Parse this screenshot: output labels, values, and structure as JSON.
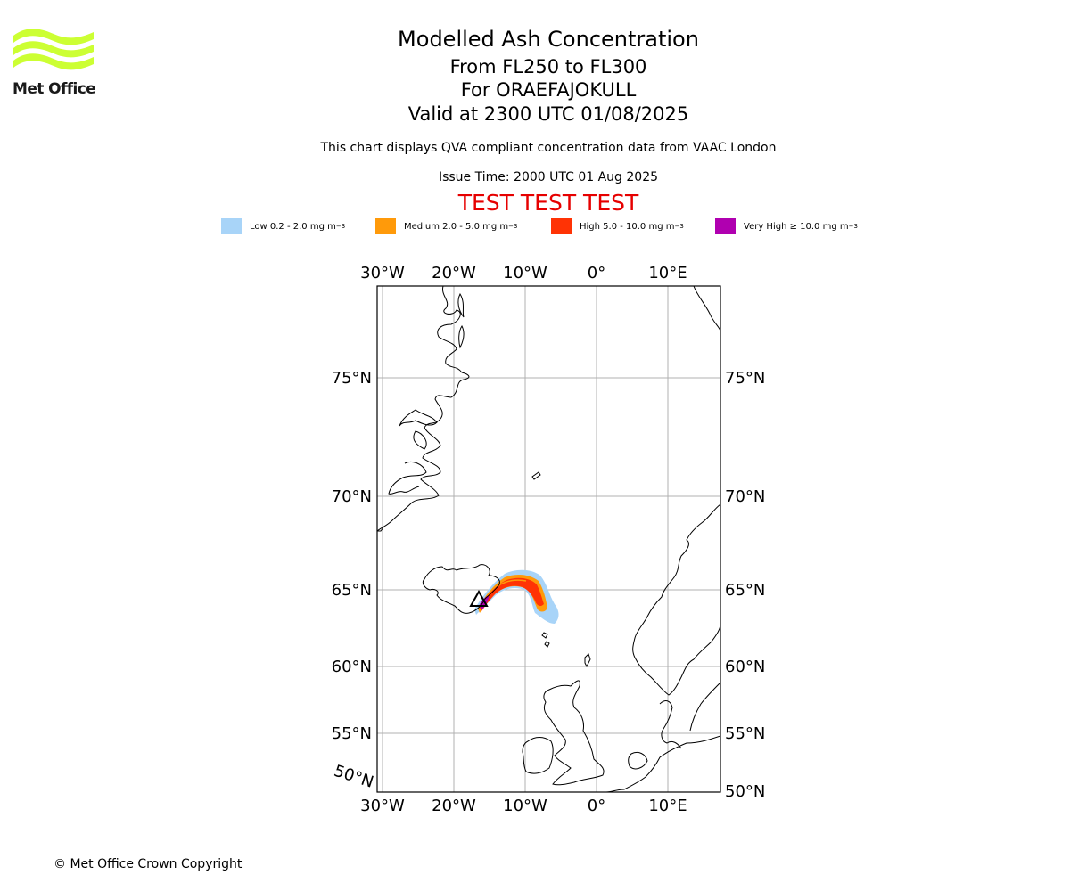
{
  "logo": {
    "text": "Met Office",
    "color": "#ccff33"
  },
  "title": {
    "main": "Modelled Ash Concentration",
    "levels": "From FL250 to FL300",
    "volcano": "For ORAEFAJOKULL",
    "valid": "Valid at 2300 UTC 01/08/2025",
    "note": "This chart displays QVA compliant concentration data from VAAC London",
    "issue": "Issue Time: 2000 UTC 01 Aug 2025",
    "test_banner": "TEST TEST TEST"
  },
  "legend": [
    {
      "label": "Low 0.2 - 2.0 mg m",
      "unit_exp": "−3",
      "color": "#a8d4f8"
    },
    {
      "label": "Medium 2.0 - 5.0 mg m",
      "unit_exp": "−3",
      "color": "#ff9a0a"
    },
    {
      "label": "High 5.0 - 10.0 mg m",
      "unit_exp": "−3",
      "color": "#ff3305"
    },
    {
      "label": "Very High  ≥  10.0 mg m",
      "unit_exp": "−3",
      "color": "#b000b0"
    }
  ],
  "map": {
    "lon_ticks": [
      "30°W",
      "20°W",
      "10°W",
      "0°",
      "10°E"
    ],
    "lat_ticks_left": [
      "75°N",
      "70°N",
      "65°N",
      "60°N",
      "55°N",
      "50°N"
    ],
    "lat_ticks_right": [
      "75°N",
      "70°N",
      "65°N",
      "60°N",
      "55°N",
      "50°N"
    ],
    "gridline_color": "#b0b0b0",
    "volcano_marker": "triangle"
  },
  "footer": {
    "copyright": "© Met Office Crown Copyright"
  }
}
